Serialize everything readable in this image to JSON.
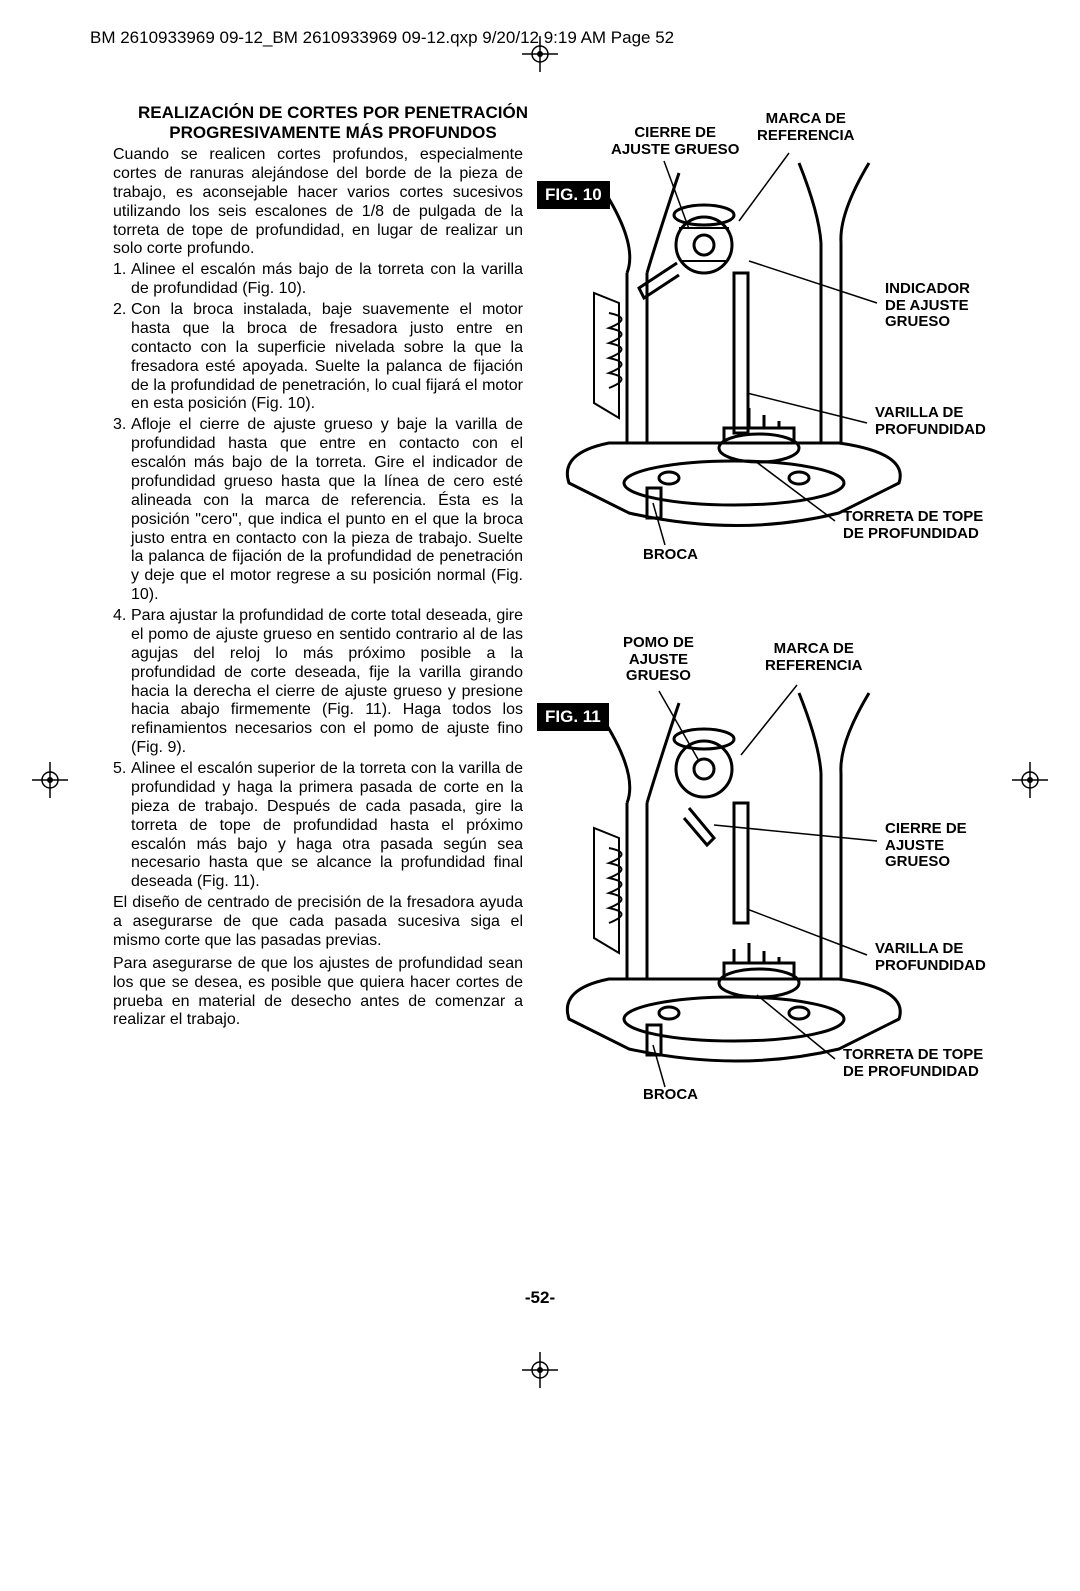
{
  "header": {
    "text": "BM 2610933969 09-12_BM 2610933969 09-12.qxp  9/20/12  9:19 AM  Page 52"
  },
  "title_line1": "REALIZACIÓN DE CORTES POR PENETRACIÓN",
  "title_line2": "PROGRESIVAMENTE MÁS PROFUNDOS",
  "intro": "Cuando se realicen cortes profundos, especialmente cortes de ranuras alejándose del borde de la pieza de trabajo, es aconsejable hacer varios cortes sucesivos utilizando los seis escalones de 1/8 de pulgada de la torreta de tope de profundidad, en lugar de realizar un solo corte profundo.",
  "steps": [
    {
      "n": "1.",
      "t": "Alinee el escalón más bajo de la torreta con la varilla de profundidad (Fig. 10)."
    },
    {
      "n": "2.",
      "t": "Con la broca instalada, baje suavemente el motor hasta que la broca de fresadora justo entre en contacto con la superficie nivelada sobre la que la fresadora esté apoyada. Suelte la palanca de fijación de la profundidad de penetración, lo cual fijará el motor en esta posición (Fig. 10)."
    },
    {
      "n": "3.",
      "t": "Afloje el cierre de ajuste grueso y baje la varilla de profundidad hasta que entre en contacto con el escalón más bajo de la torreta. Gire el indicador de profundidad grueso hasta que la línea de cero esté alineada con la marca de referencia. Ésta es la posición \"cero\", que indica el punto en el que la broca justo entra en contacto con la pieza de trabajo. Suelte la palanca de fijación de la profundidad de penetración y deje que el motor regrese a su posición normal (Fig. 10)."
    },
    {
      "n": "4.",
      "t": "Para ajustar la profundidad de corte total deseada, gire el pomo de ajuste grueso en sentido contrario al de las agujas del reloj lo más próximo posible a la profundidad de corte deseada, fije la varilla girando hacia la derecha el cierre de ajuste grueso y presione hacia abajo firmemente (Fig. 11). Haga todos los refinamientos necesarios con el pomo de ajuste fino (Fig. 9)."
    },
    {
      "n": "5.",
      "t": "Alinee el escalón superior de la torreta con la varilla de profundidad y haga la primera pasada de corte en la pieza de trabajo. Después de cada pasada, gire la torreta de tope de profundidad hasta el próximo escalón más bajo y haga otra pasada según sea necesario hasta que se alcance la profundidad final deseada (Fig. 11)."
    }
  ],
  "para1": "El diseño de centrado de precisión de la fresadora ayuda a asegurarse de que cada pasada sucesiva siga el mismo corte que las pasadas previas.",
  "para2": "Para asegurarse de que los ajustes de profundidad sean los que se desea, es posible que quiera hacer cortes de prueba en material de desecho antes de comenzar a realizar el trabajo.",
  "fig10": {
    "label": "FIG. 10",
    "cierre": "CIERRE DE\nAJUSTE GRUESO",
    "marca": "MARCA DE\nREFERENCIA",
    "indicador": "INDICADOR\nDE AJUSTE\nGRUESO",
    "varilla": "VARILLA DE\nPROFUNDIDAD",
    "torreta": "TORRETA DE TOPE\nDE PROFUNDIDAD",
    "broca": "BROCA"
  },
  "fig11": {
    "label": "FIG. 11",
    "pomo": "POMO DE\nAJUSTE\nGRUESO",
    "marca": "MARCA DE\nREFERENCIA",
    "cierre": "CIERRE DE\nAJUSTE\nGRUESO",
    "varilla": "VARILLA DE\nPROFUNDIDAD",
    "torreta": "TORRETA DE TOPE\nDE PROFUNDIDAD",
    "broca": "BROCA"
  },
  "pagenum": "-52-",
  "colors": {
    "text": "#000000",
    "bg": "#ffffff"
  }
}
